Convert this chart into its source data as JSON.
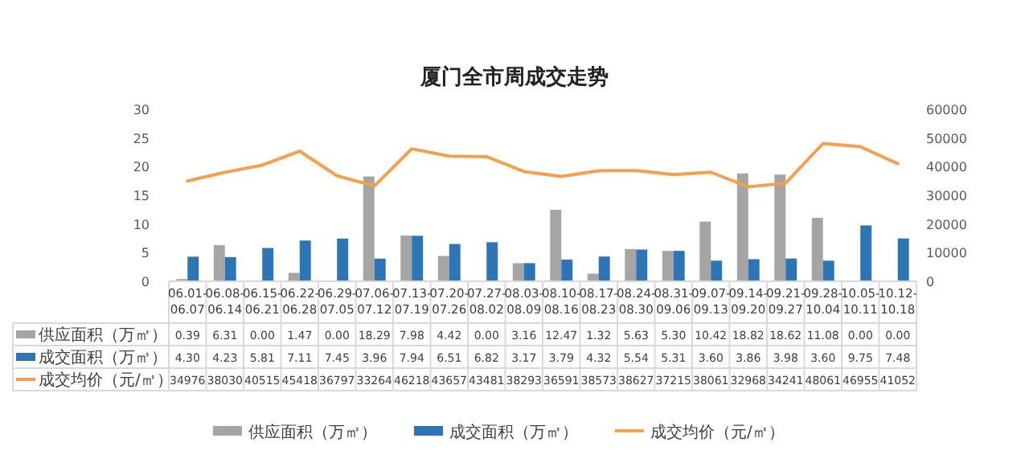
{
  "chart_data": {
    "type": "bar",
    "title": "厦门全市周成交走势",
    "categories": [
      "06.01-06.07",
      "06.08-06.14",
      "06.15-06.21",
      "06.22-06.28",
      "06.29-07.05",
      "07.06-07.12",
      "07.13-07.19",
      "07.20-07.26",
      "07.27-08.02",
      "08.03-08.09",
      "08.10-08.16",
      "08.17-08.23",
      "08.24-08.30",
      "08.31-09.06",
      "09.07-09.13",
      "09.14-09.20",
      "09.21-09.27",
      "09.28-10.04",
      "10.05-10.11",
      "10.12-10.18"
    ],
    "series": [
      {
        "name": "供应面积（万㎡）",
        "color": "#a5a5a5",
        "values": [
          0.39,
          6.31,
          0,
          1.47,
          0,
          18.29,
          7.98,
          4.42,
          0,
          3.16,
          12.47,
          1.32,
          5.63,
          5.3,
          10.42,
          18.82,
          18.62,
          11.08,
          0,
          0
        ],
        "value_labels": [
          "0.39",
          "6.31",
          "0.00",
          "1.47",
          "0.00",
          "18.29",
          "7.98",
          "4.42",
          "0.00",
          "3.16",
          "12.47",
          "1.32",
          "5.63",
          "5.30",
          "10.42",
          "18.82",
          "18.62",
          "11.08",
          "0.00",
          "0.00"
        ]
      },
      {
        "name": "成交面积（万㎡）",
        "color": "#2e75b6",
        "values": [
          4.3,
          4.23,
          5.81,
          7.11,
          7.45,
          3.96,
          7.94,
          6.51,
          6.82,
          3.17,
          3.79,
          4.32,
          5.54,
          5.31,
          3.6,
          3.86,
          3.98,
          3.6,
          9.75,
          7.48
        ],
        "value_labels": [
          "4.30",
          "4.23",
          "5.81",
          "7.11",
          "7.45",
          "3.96",
          "7.94",
          "6.51",
          "6.82",
          "3.17",
          "3.79",
          "4.32",
          "5.54",
          "5.31",
          "3.60",
          "3.86",
          "3.98",
          "3.60",
          "9.75",
          "7.48"
        ]
      },
      {
        "name": "成交均价（元/㎡）",
        "type": "line",
        "axis": "y2",
        "color": "#f5a04a",
        "values": [
          34976,
          38030,
          40515,
          45418,
          36797,
          33264,
          46218,
          43657,
          43481,
          38293,
          36591,
          38573,
          38627,
          37215,
          38061,
          32968,
          34241,
          48061,
          46955,
          41052
        ],
        "value_labels": [
          "34976",
          "38030",
          "40515",
          "45418",
          "36797",
          "33264",
          "46218",
          "43657",
          "43481",
          "38293",
          "36591",
          "38573",
          "38627",
          "37215",
          "38061",
          "32968",
          "34241",
          "48061",
          "46955",
          "41052"
        ]
      }
    ],
    "ylim": [
      0,
      30
    ],
    "yticks": [
      0,
      5,
      10,
      15,
      20,
      25,
      30
    ],
    "y2lim": [
      0,
      60000
    ],
    "y2ticks": [
      0,
      10000,
      20000,
      30000,
      40000,
      50000,
      60000
    ],
    "legend": "bottom"
  }
}
